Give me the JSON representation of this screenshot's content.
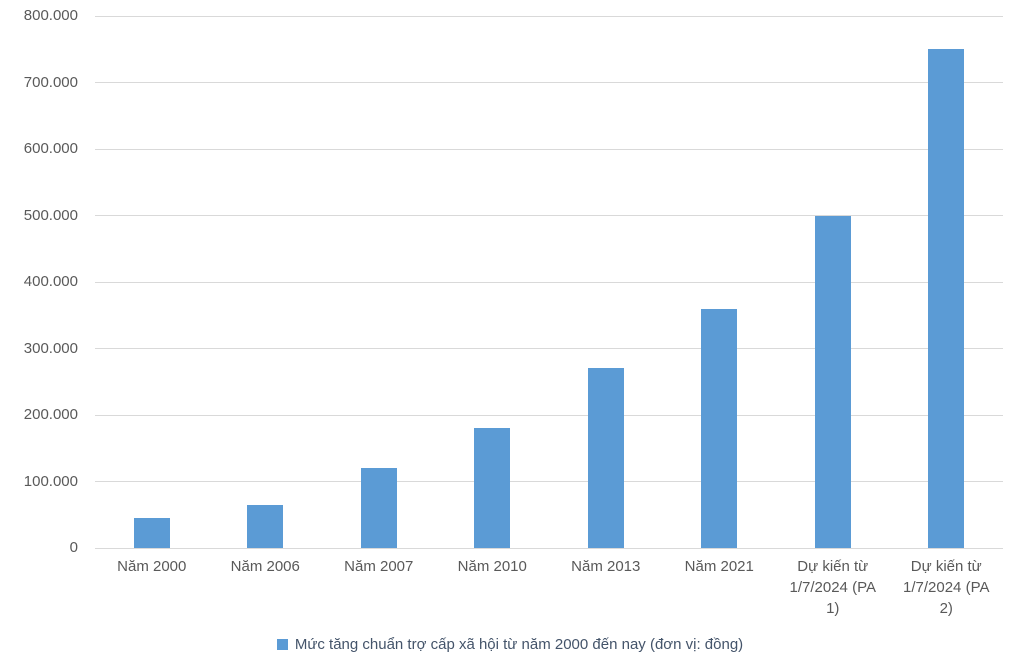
{
  "chart_data": {
    "type": "bar",
    "title": "",
    "legend": "Mức tăng chuẩn trợ cấp xã hội từ năm 2000 đến nay (đơn vị: đồng)",
    "legend_position": "bottom",
    "categories": [
      "Năm 2000",
      "Năm 2006",
      "Năm 2007",
      "Năm 2010",
      "Năm 2013",
      "Năm 2021",
      "Dự kiến từ 1/7/2024 (PA 1)",
      "Dự kiến từ 1/7/2024 (PA 2)"
    ],
    "values": [
      45000,
      65000,
      120000,
      180000,
      270000,
      360000,
      500000,
      750000
    ],
    "xlabel": "",
    "ylabel": "",
    "ylim": [
      0,
      800000
    ],
    "y_ticks": [
      {
        "value": 0,
        "label": "0"
      },
      {
        "value": 100000,
        "label": "100.000"
      },
      {
        "value": 200000,
        "label": "200.000"
      },
      {
        "value": 300000,
        "label": "300.000"
      },
      {
        "value": 400000,
        "label": "400.000"
      },
      {
        "value": 500000,
        "label": "500.000"
      },
      {
        "value": 600000,
        "label": "600.000"
      },
      {
        "value": 700000,
        "label": "700.000"
      },
      {
        "value": 800000,
        "label": "800.000"
      }
    ],
    "grid": true,
    "colors": {
      "bar": "#5B9BD5",
      "gridline": "#D9D9D9",
      "axis_text": "#595959",
      "legend_text": "#44546A",
      "background": "#FFFFFF"
    }
  }
}
